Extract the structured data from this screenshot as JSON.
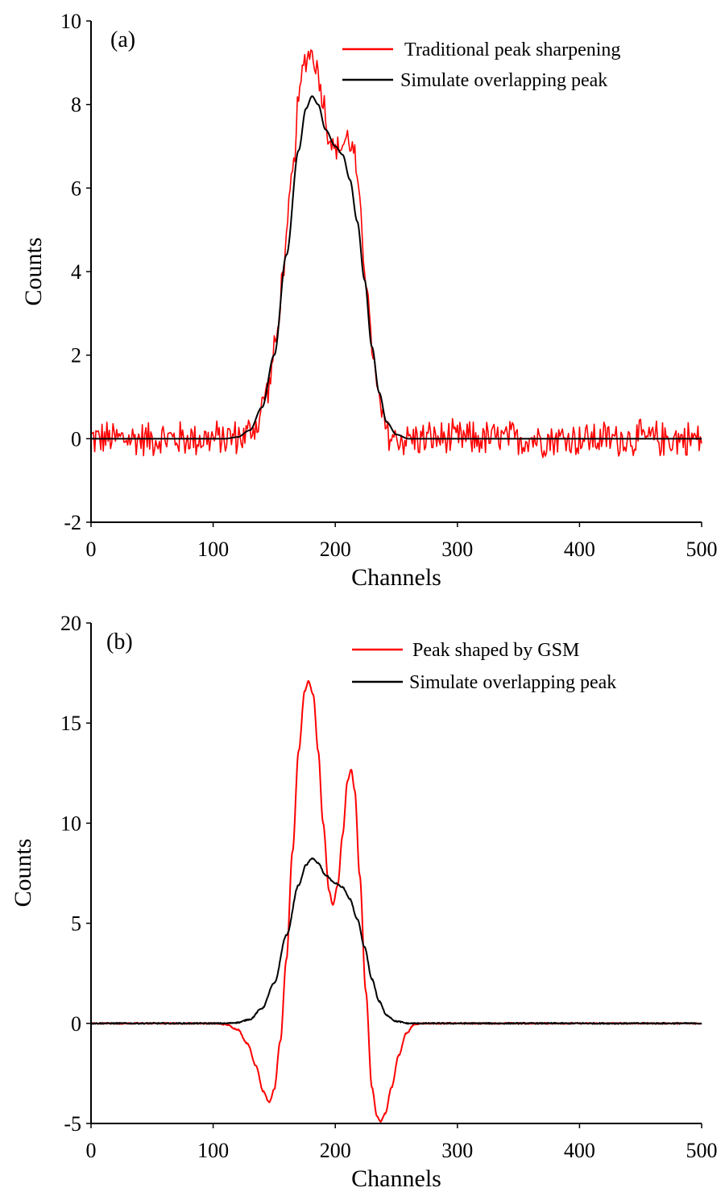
{
  "chart_data": [
    {
      "type": "line",
      "panel_label": "(a)",
      "title": "",
      "xlabel": "Channels",
      "ylabel": "Counts",
      "xlim": [
        0,
        500
      ],
      "ylim": [
        -2,
        10
      ],
      "xticks": [
        0,
        100,
        200,
        300,
        400,
        500
      ],
      "yticks": [
        -2,
        0,
        2,
        4,
        6,
        8,
        10
      ],
      "grid": false,
      "legend_position": "top-right",
      "series": [
        {
          "name": "Traditional peak sharpening",
          "color": "#ff0000",
          "noise_amplitude": 0.5,
          "points": [
            [
              0,
              0
            ],
            [
              100,
              0
            ],
            [
              125,
              0.05
            ],
            [
              135,
              0.3
            ],
            [
              145,
              1.2
            ],
            [
              152,
              2.4
            ],
            [
              158,
              4.2
            ],
            [
              165,
              6.3
            ],
            [
              170,
              8.1
            ],
            [
              175,
              9.1
            ],
            [
              180,
              9.25
            ],
            [
              185,
              8.9
            ],
            [
              190,
              8.1
            ],
            [
              195,
              7.2
            ],
            [
              200,
              6.9
            ],
            [
              205,
              7.0
            ],
            [
              210,
              7.2
            ],
            [
              215,
              6.9
            ],
            [
              220,
              5.6
            ],
            [
              225,
              3.9
            ],
            [
              230,
              2.2
            ],
            [
              235,
              1.0
            ],
            [
              240,
              0.3
            ],
            [
              245,
              0.05
            ],
            [
              250,
              0
            ],
            [
              500,
              0
            ]
          ]
        },
        {
          "name": "Simulate overlapping peak",
          "color": "#000000",
          "noise_amplitude": 0,
          "points": [
            [
              0,
              0
            ],
            [
              110,
              0
            ],
            [
              120,
              0.04
            ],
            [
              130,
              0.2
            ],
            [
              140,
              0.75
            ],
            [
              150,
              2.0
            ],
            [
              160,
              4.4
            ],
            [
              170,
              6.9
            ],
            [
              176,
              7.9
            ],
            [
              181,
              8.2
            ],
            [
              186,
              8.0
            ],
            [
              192,
              7.4
            ],
            [
              200,
              7.0
            ],
            [
              206,
              6.8
            ],
            [
              212,
              6.2
            ],
            [
              218,
              5.2
            ],
            [
              224,
              3.8
            ],
            [
              230,
              2.2
            ],
            [
              236,
              1.1
            ],
            [
              242,
              0.4
            ],
            [
              250,
              0.1
            ],
            [
              260,
              0
            ],
            [
              500,
              0
            ]
          ]
        }
      ]
    },
    {
      "type": "line",
      "panel_label": "(b)",
      "title": "",
      "xlabel": "Channels",
      "ylabel": "Counts",
      "xlim": [
        0,
        500
      ],
      "ylim": [
        -5,
        20
      ],
      "xticks": [
        0,
        100,
        200,
        300,
        400,
        500
      ],
      "yticks": [
        -5,
        0,
        5,
        10,
        15,
        20
      ],
      "grid": false,
      "legend_position": "top-right",
      "series": [
        {
          "name": "Peak shaped by GSM",
          "color": "#ff0000",
          "noise_amplitude": 0,
          "points": [
            [
              0,
              0
            ],
            [
              100,
              0
            ],
            [
              110,
              -0.05
            ],
            [
              120,
              -0.3
            ],
            [
              128,
              -1.0
            ],
            [
              135,
              -2.1
            ],
            [
              141,
              -3.4
            ],
            [
              146,
              -3.95
            ],
            [
              150,
              -3.3
            ],
            [
              155,
              -0.9
            ],
            [
              160,
              3.2
            ],
            [
              165,
              8.6
            ],
            [
              170,
              13.6
            ],
            [
              175,
              16.6
            ],
            [
              178,
              17.1
            ],
            [
              182,
              16.4
            ],
            [
              186,
              13.6
            ],
            [
              190,
              10.0
            ],
            [
              195,
              6.6
            ],
            [
              198,
              5.9
            ],
            [
              202,
              6.9
            ],
            [
              206,
              9.4
            ],
            [
              210,
              12.1
            ],
            [
              213,
              12.7
            ],
            [
              216,
              11.6
            ],
            [
              220,
              7.4
            ],
            [
              225,
              1.6
            ],
            [
              230,
              -3.2
            ],
            [
              234,
              -4.6
            ],
            [
              237,
              -4.9
            ],
            [
              241,
              -4.5
            ],
            [
              246,
              -3.2
            ],
            [
              252,
              -1.6
            ],
            [
              258,
              -0.5
            ],
            [
              265,
              -0.05
            ],
            [
              270,
              0
            ],
            [
              500,
              0
            ]
          ]
        },
        {
          "name": "Simulate overlapping peak",
          "color": "#000000",
          "noise_amplitude": 0,
          "points": [
            [
              0,
              0
            ],
            [
              110,
              0
            ],
            [
              120,
              0.04
            ],
            [
              130,
              0.2
            ],
            [
              140,
              0.75
            ],
            [
              150,
              2.0
            ],
            [
              160,
              4.4
            ],
            [
              170,
              6.9
            ],
            [
              176,
              7.9
            ],
            [
              181,
              8.25
            ],
            [
              186,
              8.0
            ],
            [
              192,
              7.4
            ],
            [
              200,
              7.0
            ],
            [
              206,
              6.8
            ],
            [
              212,
              6.2
            ],
            [
              218,
              5.2
            ],
            [
              224,
              3.8
            ],
            [
              230,
              2.2
            ],
            [
              236,
              1.1
            ],
            [
              242,
              0.4
            ],
            [
              250,
              0.1
            ],
            [
              260,
              0
            ],
            [
              500,
              0
            ]
          ]
        }
      ]
    }
  ]
}
